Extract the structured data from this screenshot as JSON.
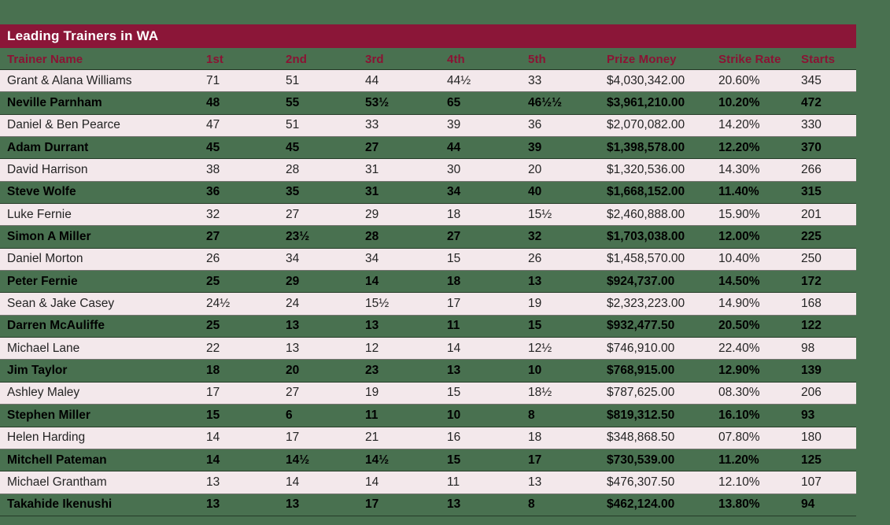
{
  "title_bar": {
    "label": "Leading Trainers in WA"
  },
  "colors": {
    "page_background": "#497150",
    "title_bar_background": "#8b1638",
    "title_text": "#ffffff",
    "header_text": "#8b1334",
    "row_light_background": "#f3e8eb",
    "row_divider": "#0a120a"
  },
  "chart_data": {
    "type": "table",
    "title": "Leading Trainers in WA",
    "columns": [
      "Trainer Name",
      "1st",
      "2nd",
      "3rd",
      "4th",
      "5th",
      "Prize Money",
      "Strike Rate",
      "Starts"
    ],
    "rows": [
      [
        "Grant & Alana Williams",
        "71",
        "51",
        "44",
        "44½",
        "33",
        "$4,030,342.00",
        "20.60%",
        "345"
      ],
      [
        "Neville Parnham",
        "48",
        "55",
        "53½",
        "65",
        "46½½",
        "$3,961,210.00",
        "10.20%",
        "472"
      ],
      [
        "Daniel & Ben Pearce",
        "47",
        "51",
        "33",
        "39",
        "36",
        "$2,070,082.00",
        "14.20%",
        "330"
      ],
      [
        "Adam Durrant",
        "45",
        "45",
        "27",
        "44",
        "39",
        "$1,398,578.00",
        "12.20%",
        "370"
      ],
      [
        "David Harrison",
        "38",
        "28",
        "31",
        "30",
        "20",
        "$1,320,536.00",
        "14.30%",
        "266"
      ],
      [
        "Steve Wolfe",
        "36",
        "35",
        "31",
        "34",
        "40",
        "$1,668,152.00",
        "11.40%",
        "315"
      ],
      [
        "Luke Fernie",
        "32",
        "27",
        "29",
        "18",
        "15½",
        "$2,460,888.00",
        "15.90%",
        "201"
      ],
      [
        "Simon A Miller",
        "27",
        "23½",
        "28",
        "27",
        "32",
        "$1,703,038.00",
        "12.00%",
        "225"
      ],
      [
        "Daniel Morton",
        "26",
        "34",
        "34",
        "15",
        "26",
        "$1,458,570.00",
        "10.40%",
        "250"
      ],
      [
        "Peter Fernie",
        "25",
        "29",
        "14",
        "18",
        "13",
        "$924,737.00",
        "14.50%",
        "172"
      ],
      [
        "Sean & Jake Casey",
        "24½",
        "24",
        "15½",
        "17",
        "19",
        "$2,323,223.00",
        "14.90%",
        "168"
      ],
      [
        "Darren McAuliffe",
        "25",
        "13",
        "13",
        "11",
        "15",
        "$932,477.50",
        "20.50%",
        "122"
      ],
      [
        "Michael Lane",
        "22",
        "13",
        "12",
        "14",
        "12½",
        "$746,910.00",
        "22.40%",
        "98"
      ],
      [
        "Jim Taylor",
        "18",
        "20",
        "23",
        "13",
        "10",
        "$768,915.00",
        "12.90%",
        "139"
      ],
      [
        "Ashley Maley",
        "17",
        "27",
        "19",
        "15",
        "18½",
        "$787,625.00",
        "08.30%",
        "206"
      ],
      [
        "Stephen Miller",
        "15",
        "6",
        "11",
        "10",
        "8",
        "$819,312.50",
        "16.10%",
        "93"
      ],
      [
        "Helen Harding",
        "14",
        "17",
        "21",
        "16",
        "18",
        "$348,868.50",
        "07.80%",
        "180"
      ],
      [
        "Mitchell Pateman",
        "14",
        "14½",
        "14½",
        "15",
        "17",
        "$730,539.00",
        "11.20%",
        "125"
      ],
      [
        "Michael Grantham",
        "13",
        "14",
        "14",
        "11",
        "13",
        "$476,307.50",
        "12.10%",
        "107"
      ],
      [
        "Takahide Ikenushi",
        "13",
        "13",
        "17",
        "13",
        "8",
        "$462,124.00",
        "13.80%",
        "94"
      ]
    ]
  }
}
